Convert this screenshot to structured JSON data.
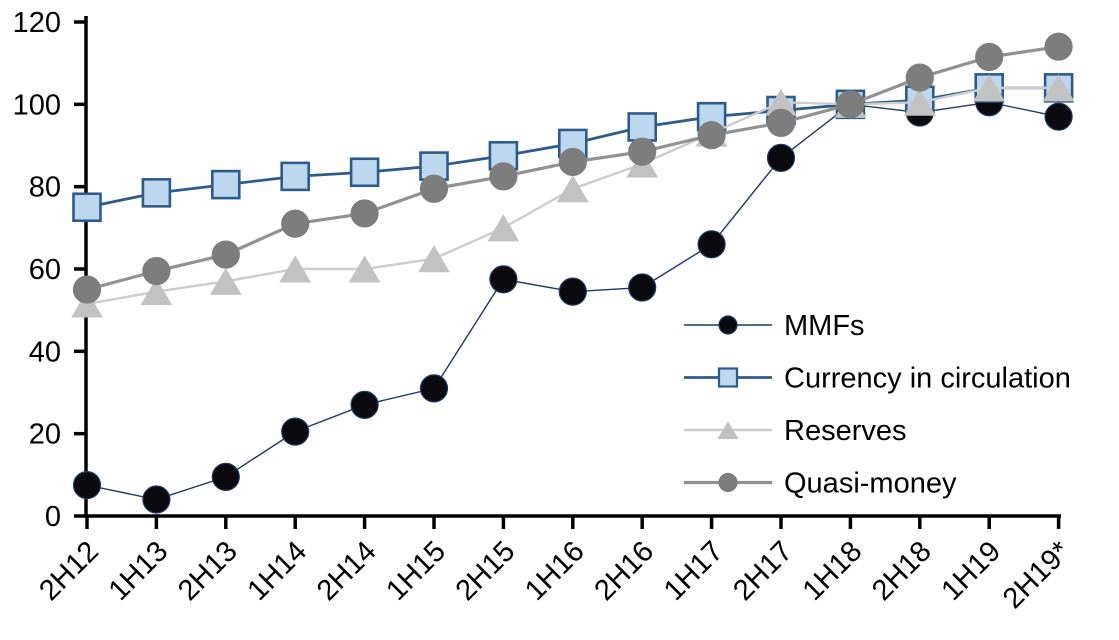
{
  "chart_data": {
    "type": "line",
    "title": "",
    "xlabel": "",
    "ylabel": "",
    "ylim": [
      0,
      120
    ],
    "y_ticks": [
      0,
      20,
      40,
      60,
      80,
      100,
      120
    ],
    "grid": false,
    "legend_position": "inside-right",
    "categories": [
      "2H12",
      "1H13",
      "2H13",
      "1H14",
      "2H14",
      "1H15",
      "2H15",
      "1H16",
      "2H16",
      "1H17",
      "2H17",
      "1H18",
      "2H18",
      "1H19",
      "2H19*"
    ],
    "series": [
      {
        "name": "MMFs",
        "marker": "circle",
        "marker_color": "#0a0a0f",
        "marker_border": "#1f3864",
        "line_color": "#1f3864",
        "line_width": 1.4,
        "values": [
          7.5,
          4,
          9.5,
          20.5,
          27,
          31,
          57.5,
          54.5,
          55.5,
          66,
          87,
          100,
          98,
          100.5,
          97
        ]
      },
      {
        "name": "Currency in circulation",
        "marker": "square",
        "marker_color": "#bdd7ee",
        "marker_border": "#2e5c8a",
        "line_color": "#2e5c8a",
        "line_width": 2.8,
        "values": [
          75,
          78.5,
          80.5,
          82.5,
          83.5,
          85,
          87.5,
          90.5,
          94.5,
          97,
          98.5,
          100,
          101,
          104,
          104
        ]
      },
      {
        "name": "Reserves",
        "marker": "triangle",
        "marker_color": "#c2c2c2",
        "marker_border": "#c2c2c2",
        "line_color": "#cdcdcd",
        "line_width": 2.4,
        "values": [
          51.5,
          54.5,
          57,
          60,
          60,
          62.5,
          70,
          79.5,
          85.5,
          93,
          100.5,
          100,
          100.5,
          104,
          104
        ]
      },
      {
        "name": "Quasi-money",
        "marker": "circle",
        "marker_color": "#7d7d7d",
        "marker_border": "#7d7d7d",
        "line_color": "#929292",
        "line_width": 3.2,
        "values": [
          55,
          59.5,
          63.5,
          71,
          73.5,
          79.5,
          82.5,
          86,
          88.5,
          92.5,
          95.5,
          100,
          106.5,
          111.5,
          114
        ]
      }
    ],
    "axis_color": "#000000",
    "tick_font_size": 29,
    "legend_font_size": 29
  }
}
